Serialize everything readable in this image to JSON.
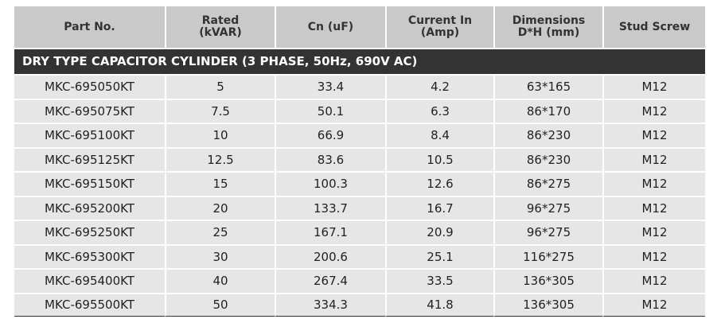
{
  "table": {
    "columns": [
      [
        "Part No."
      ],
      [
        "Rated",
        "(kVAR)"
      ],
      [
        "Cn (uF)"
      ],
      [
        "Current In",
        "(Amp)"
      ],
      [
        "Dimensions",
        "D*H (mm)"
      ],
      [
        "Stud Screw"
      ]
    ],
    "section": "DRY TYPE CAPACITOR CYLINDER (3 PHASE, 50Hz, 690V AC)",
    "rows": [
      [
        "MKC-695050KT",
        "5",
        "33.4",
        "4.2",
        "63*165",
        "M12"
      ],
      [
        "MKC-695075KT",
        "7.5",
        "50.1",
        "6.3",
        "86*170",
        "M12"
      ],
      [
        "MKC-695100KT",
        "10",
        "66.9",
        "8.4",
        "86*230",
        "M12"
      ],
      [
        "MKC-695125KT",
        "12.5",
        "83.6",
        "10.5",
        "86*230",
        "M12"
      ],
      [
        "MKC-695150KT",
        "15",
        "100.3",
        "12.6",
        "86*275",
        "M12"
      ],
      [
        "MKC-695200KT",
        "20",
        "133.7",
        "16.7",
        "96*275",
        "M12"
      ],
      [
        "MKC-695250KT",
        "25",
        "167.1",
        "20.9",
        "96*275",
        "M12"
      ],
      [
        "MKC-695300KT",
        "30",
        "200.6",
        "25.1",
        "116*275",
        "M12"
      ],
      [
        "MKC-695400KT",
        "40",
        "267.4",
        "33.5",
        "136*305",
        "M12"
      ],
      [
        "MKC-695500KT",
        "50",
        "334.3",
        "41.8",
        "136*305",
        "M12"
      ]
    ]
  }
}
